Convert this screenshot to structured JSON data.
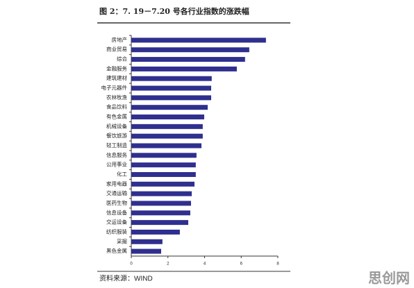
{
  "chart_data": {
    "type": "bar",
    "orientation": "horizontal",
    "title": "图 2：7. 19－7.20 号各行业指数的涨跌幅",
    "source": "资料来源：WIND",
    "watermark": "思创网",
    "categories": [
      "房地产",
      "商业贸易",
      "综合",
      "金融服务",
      "建筑建材",
      "电子元器件",
      "农林牧渔",
      "食品饮料",
      "有色金属",
      "机械设备",
      "餐饮旅游",
      "轻工制造",
      "信息服务",
      "公用事业",
      "化工",
      "家用电器",
      "交通运输",
      "医药生物",
      "信息设备",
      "交运设备",
      "纺织服装",
      "采掘",
      "黑色金属"
    ],
    "values": [
      7.35,
      6.44,
      6.21,
      5.76,
      4.39,
      4.36,
      4.36,
      4.17,
      3.98,
      3.9,
      3.9,
      3.83,
      3.56,
      3.52,
      3.52,
      3.45,
      3.3,
      3.26,
      3.22,
      3.11,
      2.65,
      1.7,
      1.63
    ],
    "color": "#2f2f8f",
    "xlim": [
      0,
      8
    ],
    "xticks": [
      0,
      2,
      4,
      6,
      8
    ]
  }
}
